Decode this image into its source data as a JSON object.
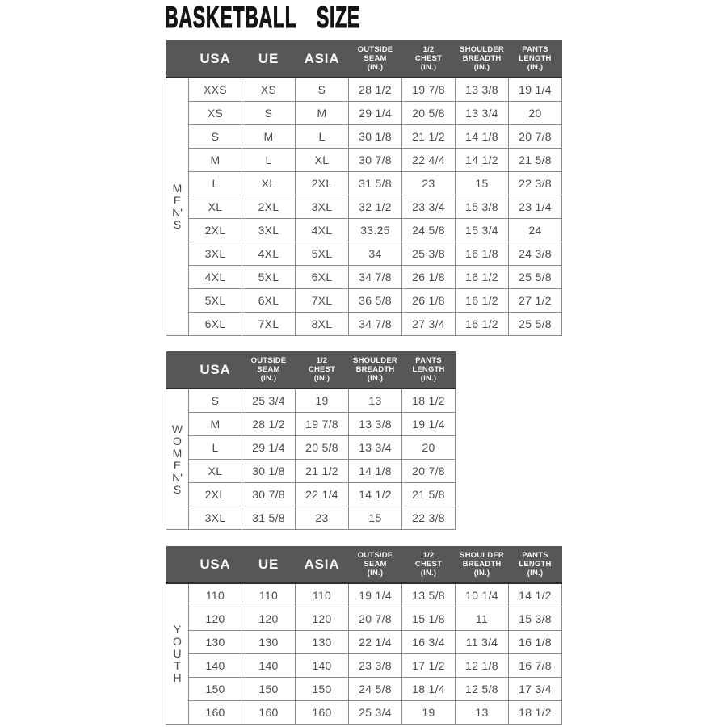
{
  "title": "BASKETBALL  SIZE",
  "colors": {
    "header_bg": "#57575a",
    "header_text": "#f7f7f7",
    "border": "#8a8a8a",
    "cell_text": "#4b4b4b",
    "title_color": "#141414"
  },
  "tables": [
    {
      "id": "mens",
      "group": "MEN'S",
      "vertical_label": [
        "M",
        "E",
        "N'",
        "S"
      ],
      "columns": [
        {
          "lines": [
            "USA"
          ]
        },
        {
          "lines": [
            "UE"
          ]
        },
        {
          "lines": [
            "ASIA"
          ]
        },
        {
          "lines": [
            "OUTSIDE",
            "SEAM",
            "(IN.)"
          ]
        },
        {
          "lines": [
            "1/2",
            "CHEST",
            "(IN.)"
          ]
        },
        {
          "lines": [
            "SHOULDER",
            "BREADTH",
            "(IN.)"
          ]
        },
        {
          "lines": [
            "PANTS",
            "LENGTH",
            "(IN.)"
          ]
        }
      ],
      "rows": [
        [
          "XXS",
          "XS",
          "S",
          "28 1/2",
          "19 7/8",
          "13 3/8",
          "19 1/4"
        ],
        [
          "XS",
          "S",
          "M",
          "29 1/4",
          "20 5/8",
          "13 3/4",
          "20"
        ],
        [
          "S",
          "M",
          "L",
          "30 1/8",
          "21 1/2",
          "14 1/8",
          "20 7/8"
        ],
        [
          "M",
          "L",
          "XL",
          "30 7/8",
          "22 4/4",
          "14 1/2",
          "21 5/8"
        ],
        [
          "L",
          "XL",
          "2XL",
          "31 5/8",
          "23",
          "15",
          "22 3/8"
        ],
        [
          "XL",
          "2XL",
          "3XL",
          "32 1/2",
          "23 3/4",
          "15 3/8",
          "23 1/4"
        ],
        [
          "2XL",
          "3XL",
          "4XL",
          "33.25",
          "24 5/8",
          "15 3/4",
          "24"
        ],
        [
          "3XL",
          "4XL",
          "5XL",
          "34",
          "25 3/8",
          "16 1/8",
          "24 3/8"
        ],
        [
          "4XL",
          "5XL",
          "6XL",
          "34 7/8",
          "26 1/8",
          "16 1/2",
          "25 5/8"
        ],
        [
          "5XL",
          "6XL",
          "7XL",
          "36 5/8",
          "26 1/8",
          "16 1/2",
          "27 1/2"
        ],
        [
          "6XL",
          "7XL",
          "8XL",
          "34 7/8",
          "27 3/4",
          "16 1/2",
          "25 5/8"
        ]
      ]
    },
    {
      "id": "womens",
      "group": "WOMEN'S",
      "vertical_label": [
        "W",
        "O",
        "M",
        "E",
        "N'",
        "S"
      ],
      "columns": [
        {
          "lines": [
            "USA"
          ]
        },
        {
          "lines": [
            "OUTSIDE",
            "SEAM",
            "(IN.)"
          ]
        },
        {
          "lines": [
            "1/2",
            "CHEST",
            "(IN.)"
          ]
        },
        {
          "lines": [
            "SHOULDER",
            "BREADTH",
            "(IN.)"
          ]
        },
        {
          "lines": [
            "PANTS",
            "LENGTH",
            "(IN.)"
          ]
        }
      ],
      "rows": [
        [
          "S",
          "25 3/4",
          "19",
          "13",
          "18 1/2"
        ],
        [
          "M",
          "28 1/2",
          "19 7/8",
          "13 3/8",
          "19 1/4"
        ],
        [
          "L",
          "29 1/4",
          "20 5/8",
          "13 3/4",
          "20"
        ],
        [
          "XL",
          "30 1/8",
          "21 1/2",
          "14 1/8",
          "20 7/8"
        ],
        [
          "2XL",
          "30 7/8",
          "22 1/4",
          "14 1/2",
          "21 5/8"
        ],
        [
          "3XL",
          "31 5/8",
          "23",
          "15",
          "22 3/8"
        ]
      ]
    },
    {
      "id": "youth",
      "group": "YOUTH",
      "vertical_label": [
        "Y",
        "O",
        "U",
        "T",
        "H"
      ],
      "columns": [
        {
          "lines": [
            "USA"
          ]
        },
        {
          "lines": [
            "UE"
          ]
        },
        {
          "lines": [
            "ASIA"
          ]
        },
        {
          "lines": [
            "OUTSIDE",
            "SEAM",
            "(IN.)"
          ]
        },
        {
          "lines": [
            "1/2",
            "CHEST",
            "(IN.)"
          ]
        },
        {
          "lines": [
            "SHOULDER",
            "BREADTH",
            "(IN.)"
          ]
        },
        {
          "lines": [
            "PANTS",
            "LENGTH",
            "(IN.)"
          ]
        }
      ],
      "rows": [
        [
          "110",
          "110",
          "110",
          "19 1/4",
          "13 5/8",
          "10 1/4",
          "14 1/2"
        ],
        [
          "120",
          "120",
          "120",
          "20 7/8",
          "15 1/8",
          "11",
          "15 3/8"
        ],
        [
          "130",
          "130",
          "130",
          "22 1/4",
          "16 3/4",
          "11 3/4",
          "16 1/8"
        ],
        [
          "140",
          "140",
          "140",
          "23 3/8",
          "17 1/2",
          "12 1/8",
          "16 7/8"
        ],
        [
          "150",
          "150",
          "150",
          "24 5/8",
          "18 1/4",
          "12 5/8",
          "17 3/4"
        ],
        [
          "160",
          "160",
          "160",
          "25 3/4",
          "19",
          "13",
          "18 1/2"
        ]
      ]
    }
  ]
}
